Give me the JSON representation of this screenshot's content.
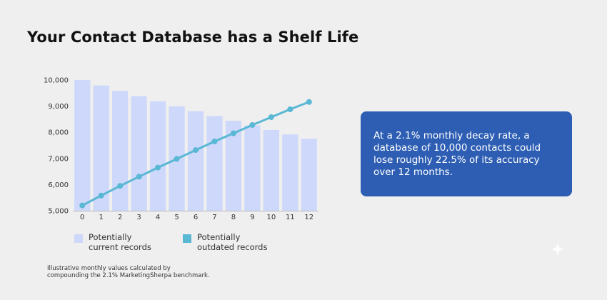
{
  "title": "Your Contact Database has a Shelf Life",
  "chart_data": {
    "type": "bar",
    "categories": [
      "0",
      "1",
      "2",
      "3",
      "4",
      "5",
      "6",
      "7",
      "8",
      "9",
      "10",
      "11",
      "12"
    ],
    "series": [
      {
        "name": "Potentially\ncurrent records",
        "type": "bar",
        "color": "#cdd8fb",
        "values": [
          10000,
          9790,
          9584,
          9383,
          9186,
          8993,
          8804,
          8619,
          8438,
          8261,
          8087,
          7917,
          7751
        ]
      },
      {
        "name": "Potentially\noutdated records",
        "type": "line",
        "color": "#5ab8d4",
        "values": [
          5200,
          5580,
          5950,
          6300,
          6650,
          6980,
          7320,
          7650,
          7960,
          8280,
          8580,
          8880,
          9160
        ]
      }
    ],
    "yticks": [
      "5,000",
      "6,000",
      "7,000",
      "8,000",
      "9,000",
      "10,000"
    ],
    "ylim": [
      5000,
      10000
    ],
    "grid": false,
    "legend": "bottom",
    "xlabel": "",
    "ylabel": ""
  },
  "footnote": "Illustrative monthly values calculated by\ncompounding the 2.1% MarketingSherpa benchmark.",
  "callout": {
    "text": "At a 2.1% monthly decay rate, a\ndatabase of 10,000 contacts could\nlose roughly 22.5% of its accuracy\nover 12 months.",
    "bg_color": "#2d5eb4"
  },
  "sparkle_icon": "sparkle-icon"
}
